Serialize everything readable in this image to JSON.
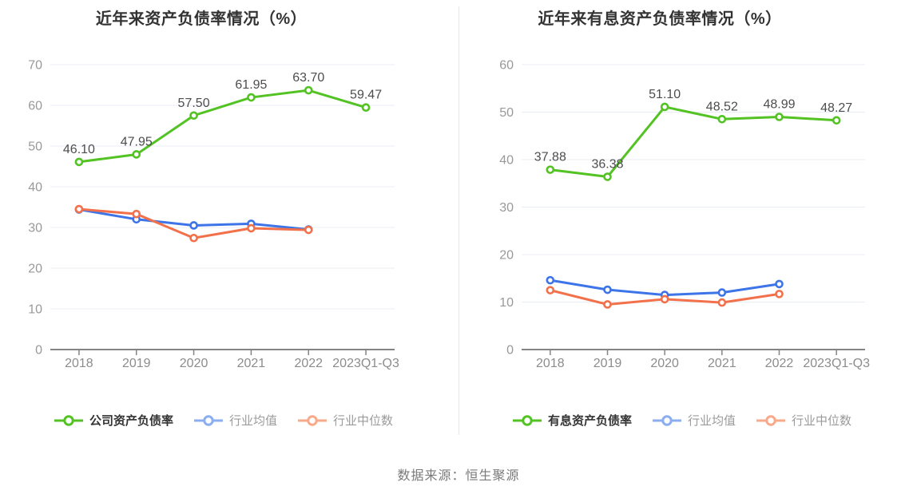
{
  "page": {
    "source_label": "数据来源：恒生聚源",
    "background_color": "#ffffff",
    "divider_color": "#e7e7e7"
  },
  "styles": {
    "grid_color": "#e8edf4",
    "axis_color": "#848484",
    "tick_label_color": "#999999",
    "x_label_color": "#8c8c8c",
    "data_label_color": "#4d4d4d",
    "title_color": "#333333"
  },
  "chart_data": [
    {
      "type": "line",
      "title": "近年来资产负债率情况（%）",
      "categories": [
        "2018",
        "2019",
        "2020",
        "2021",
        "2022",
        "2023Q1-Q3"
      ],
      "xlabel": "",
      "ylabel": "",
      "ylim": [
        0,
        70
      ],
      "yticks": [
        0,
        10,
        20,
        30,
        40,
        50,
        60,
        70
      ],
      "grid": true,
      "legend_position": "bottom",
      "series": [
        {
          "name": "公司资产负债率",
          "color": "#53c223",
          "legend_color": "#53c223",
          "label_color": "#333333",
          "primary": true,
          "show_point_labels": true,
          "values": [
            46.1,
            47.95,
            57.5,
            61.95,
            63.7,
            59.47
          ],
          "point_labels": [
            "46.10",
            "47.95",
            "57.50",
            "61.95",
            "63.70",
            "59.47"
          ]
        },
        {
          "name": "行业均值",
          "color": "#3d74e8",
          "legend_color": "#8badf2",
          "label_color": "#9b9b9b",
          "primary": false,
          "show_point_labels": false,
          "values": [
            34.4,
            32.0,
            30.5,
            30.9,
            29.5,
            null
          ]
        },
        {
          "name": "行业中位数",
          "color": "#f2714b",
          "legend_color": "#f9a989",
          "label_color": "#9b9b9b",
          "primary": false,
          "show_point_labels": false,
          "values": [
            34.5,
            33.3,
            27.4,
            29.8,
            29.4,
            null
          ]
        }
      ]
    },
    {
      "type": "line",
      "title": "近年来有息资产负债率情况（%）",
      "categories": [
        "2018",
        "2019",
        "2020",
        "2021",
        "2022",
        "2023Q1-Q3"
      ],
      "xlabel": "",
      "ylabel": "",
      "ylim": [
        0,
        60
      ],
      "yticks": [
        0,
        10,
        20,
        30,
        40,
        50,
        60
      ],
      "grid": true,
      "legend_position": "bottom",
      "series": [
        {
          "name": "有息资产负债率",
          "color": "#53c223",
          "legend_color": "#53c223",
          "label_color": "#333333",
          "primary": true,
          "show_point_labels": true,
          "values": [
            37.88,
            36.38,
            51.1,
            48.52,
            48.99,
            48.27
          ],
          "point_labels": [
            "37.88",
            "36.38",
            "51.10",
            "48.52",
            "48.99",
            "48.27"
          ]
        },
        {
          "name": "行业均值",
          "color": "#3d74e8",
          "legend_color": "#8badf2",
          "label_color": "#9b9b9b",
          "primary": false,
          "show_point_labels": false,
          "values": [
            14.6,
            12.6,
            11.5,
            12.0,
            13.8,
            null
          ]
        },
        {
          "name": "行业中位数",
          "color": "#f2714b",
          "legend_color": "#f9a989",
          "label_color": "#9b9b9b",
          "primary": false,
          "show_point_labels": false,
          "values": [
            12.5,
            9.5,
            10.6,
            9.9,
            11.7,
            null
          ]
        }
      ]
    }
  ]
}
